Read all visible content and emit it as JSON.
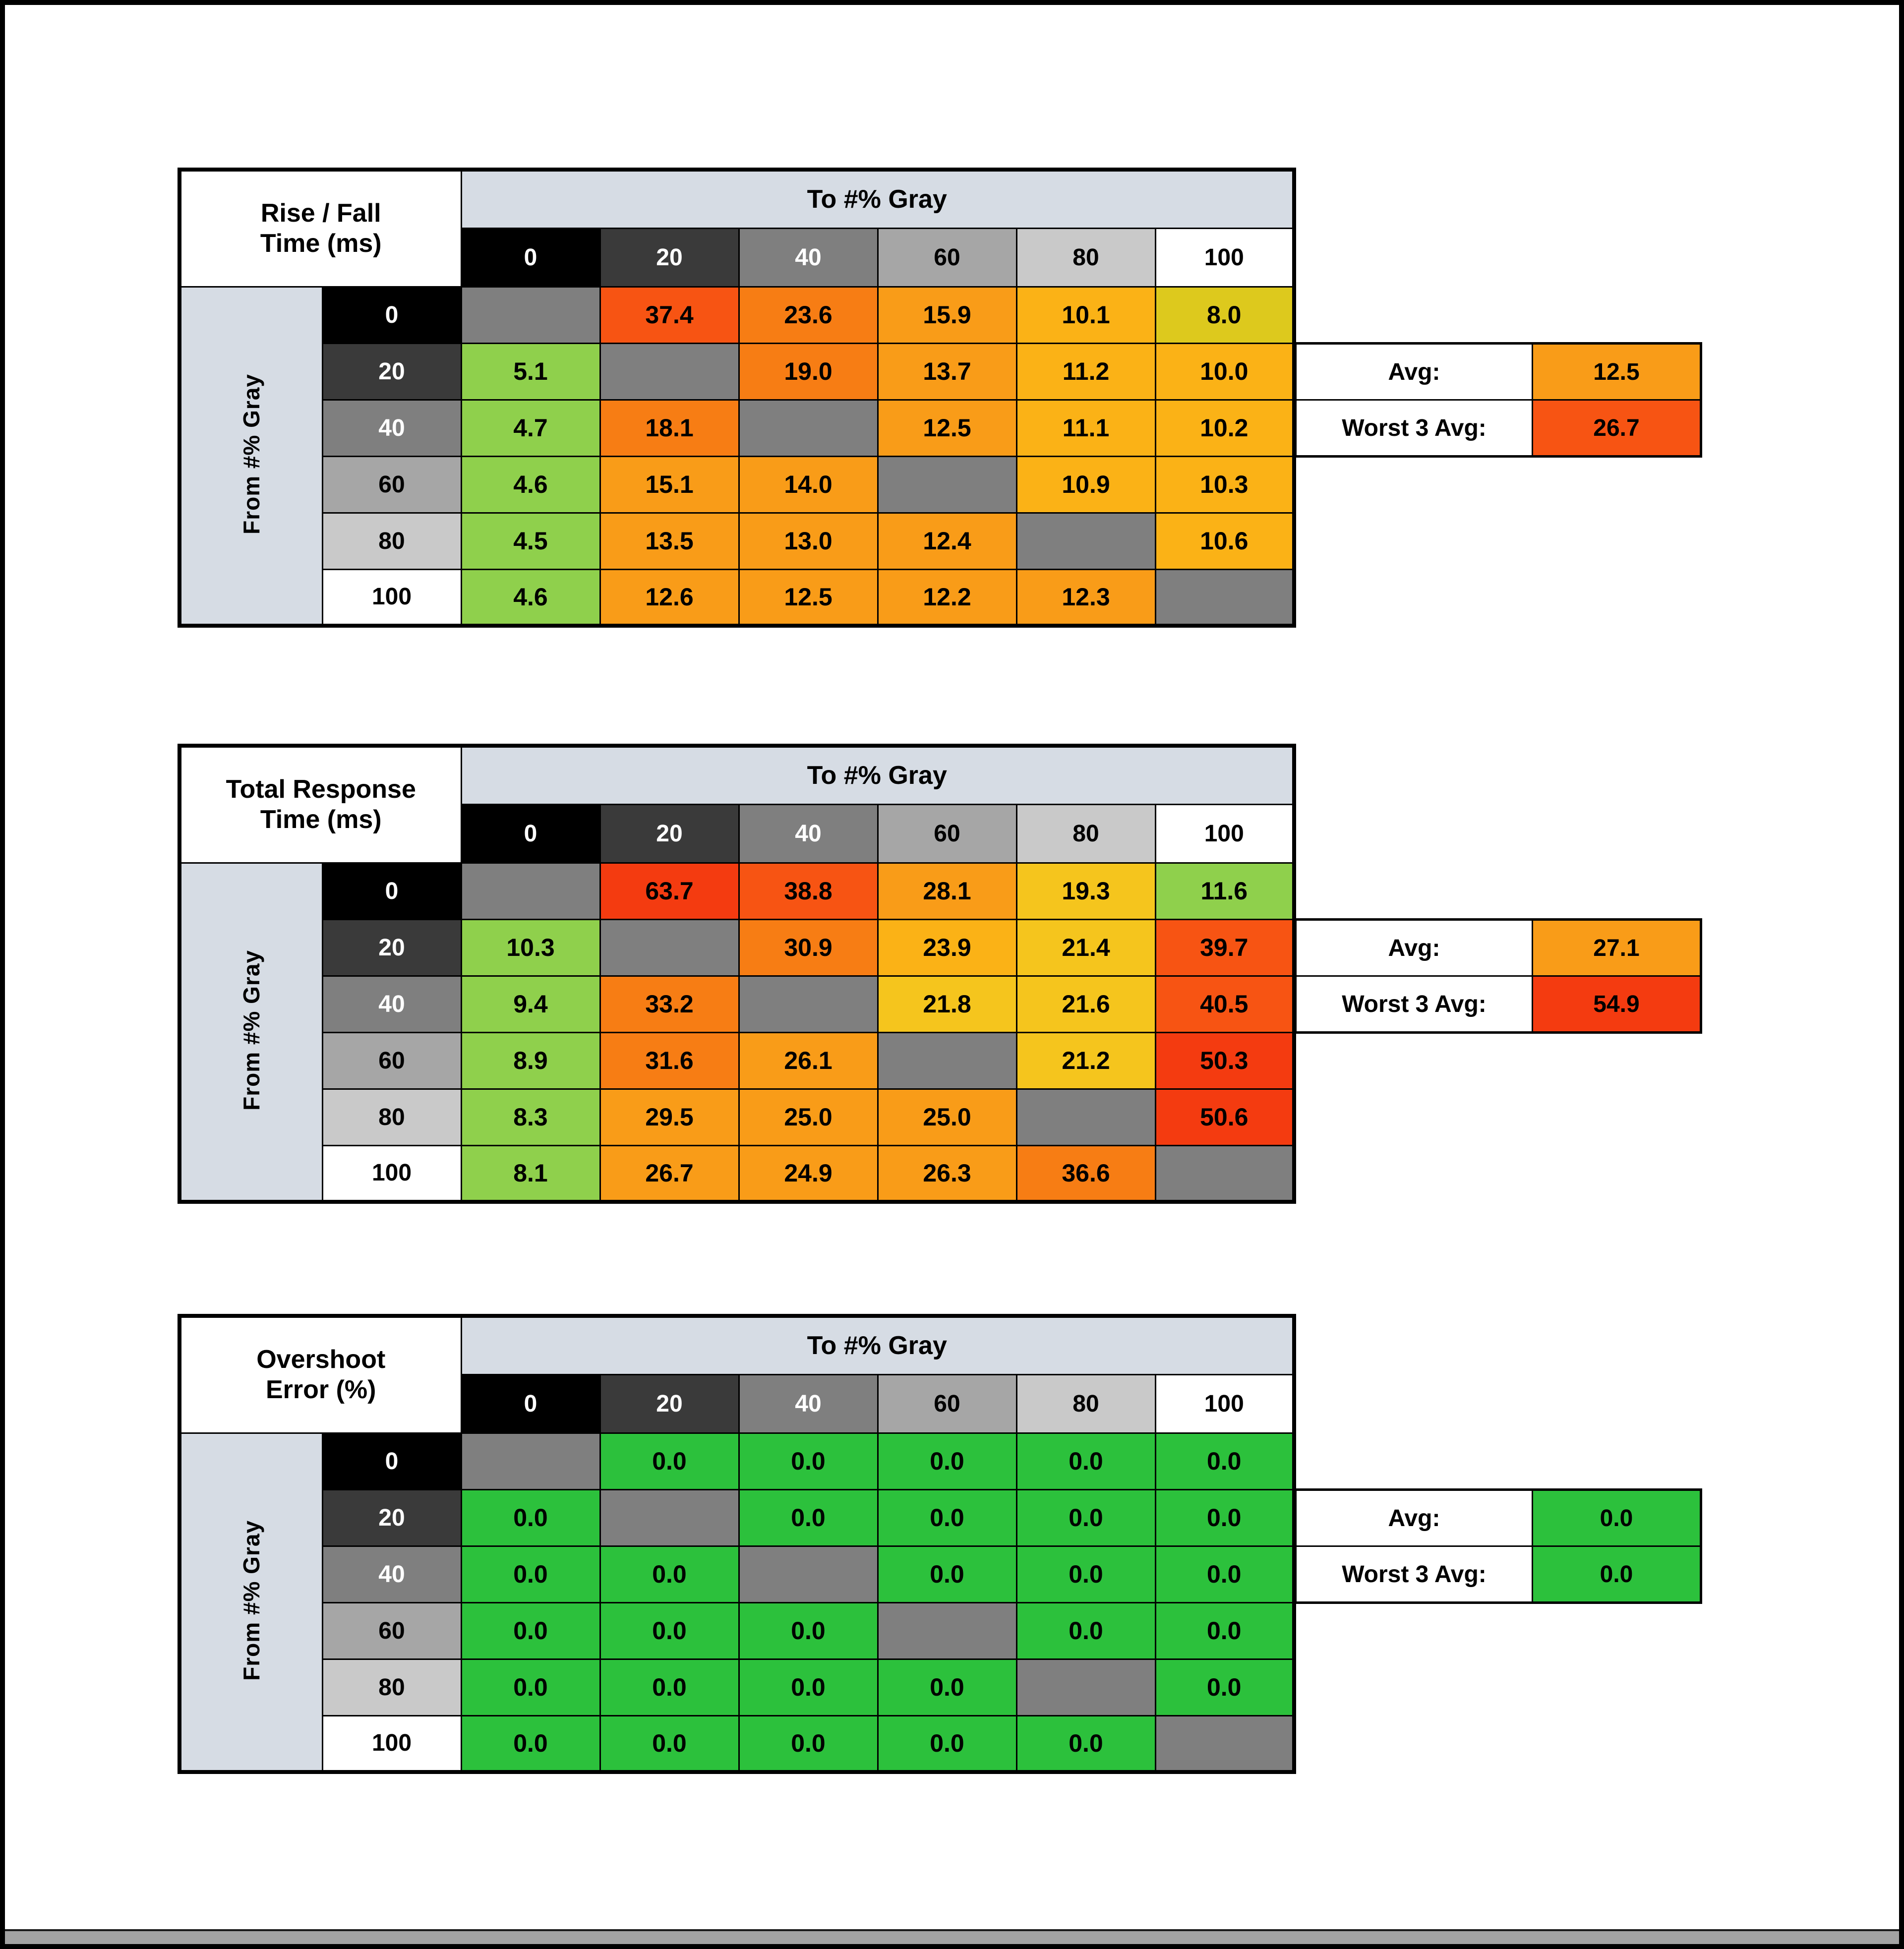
{
  "palette": {
    "header_band": "#d6dce4",
    "diagonal": "#7f7f7f",
    "gray_levels": {
      "0": "#000000",
      "20": "#3a3a3a",
      "40": "#7f7f7f",
      "60": "#a6a6a6",
      "80": "#c9c9c9",
      "100": "#ffffff"
    },
    "gray_text": {
      "0": "#ffffff",
      "20": "#ffffff",
      "40": "#ffffff",
      "60": "#000000",
      "80": "#000000",
      "100": "#000000"
    },
    "value_colors": {
      "G": "#2cc13c",
      "g": "#8fd04c",
      "y": "#ddc91d",
      "Y": "#f5c51d",
      "a": "#fbb216",
      "o": "#f99c18",
      "d": "#f77d14",
      "r": "#f75413",
      "R": "#f43b10"
    }
  },
  "chart_data": [
    {
      "type": "heatmap",
      "id": "rise-fall-time",
      "title_line1": "Rise / Fall",
      "title_line2": "Time (ms)",
      "col_axis_label": "To #% Gray",
      "row_axis_label": "From #% Gray",
      "gray_levels": [
        "0",
        "20",
        "40",
        "60",
        "80",
        "100"
      ],
      "values": [
        [
          null,
          "37.4",
          "23.6",
          "15.9",
          "10.1",
          "8.0"
        ],
        [
          "5.1",
          null,
          "19.0",
          "13.7",
          "11.2",
          "10.0"
        ],
        [
          "4.7",
          "18.1",
          null,
          "12.5",
          "11.1",
          "10.2"
        ],
        [
          "4.6",
          "15.1",
          "14.0",
          null,
          "10.9",
          "10.3"
        ],
        [
          "4.5",
          "13.5",
          "13.0",
          "12.4",
          null,
          "10.6"
        ],
        [
          "4.6",
          "12.6",
          "12.5",
          "12.2",
          "12.3",
          null
        ]
      ],
      "colors": [
        [
          null,
          "r",
          "d",
          "o",
          "a",
          "y"
        ],
        [
          "g",
          null,
          "d",
          "o",
          "a",
          "a"
        ],
        [
          "g",
          "d",
          null,
          "o",
          "a",
          "a"
        ],
        [
          "g",
          "o",
          "o",
          null,
          "a",
          "a"
        ],
        [
          "g",
          "o",
          "o",
          "o",
          null,
          "a"
        ],
        [
          "g",
          "o",
          "o",
          "o",
          "o",
          null
        ]
      ],
      "avg_label": "Avg:",
      "avg_value": "12.5",
      "avg_color": "o",
      "worst_label": "Worst 3 Avg:",
      "worst_value": "26.7",
      "worst_color": "r"
    },
    {
      "type": "heatmap",
      "id": "total-response-time",
      "title_line1": "Total Response",
      "title_line2": "Time (ms)",
      "col_axis_label": "To #% Gray",
      "row_axis_label": "From #% Gray",
      "gray_levels": [
        "0",
        "20",
        "40",
        "60",
        "80",
        "100"
      ],
      "values": [
        [
          null,
          "63.7",
          "38.8",
          "28.1",
          "19.3",
          "11.6"
        ],
        [
          "10.3",
          null,
          "30.9",
          "23.9",
          "21.4",
          "39.7"
        ],
        [
          "9.4",
          "33.2",
          null,
          "21.8",
          "21.6",
          "40.5"
        ],
        [
          "8.9",
          "31.6",
          "26.1",
          null,
          "21.2",
          "50.3"
        ],
        [
          "8.3",
          "29.5",
          "25.0",
          "25.0",
          null,
          "50.6"
        ],
        [
          "8.1",
          "26.7",
          "24.9",
          "26.3",
          "36.6",
          null
        ]
      ],
      "colors": [
        [
          null,
          "R",
          "r",
          "o",
          "Y",
          "g"
        ],
        [
          "g",
          null,
          "d",
          "a",
          "Y",
          "r"
        ],
        [
          "g",
          "d",
          null,
          "Y",
          "Y",
          "r"
        ],
        [
          "g",
          "d",
          "o",
          null,
          "Y",
          "R"
        ],
        [
          "g",
          "o",
          "o",
          "o",
          null,
          "R"
        ],
        [
          "g",
          "o",
          "o",
          "o",
          "d",
          null
        ]
      ],
      "avg_label": "Avg:",
      "avg_value": "27.1",
      "avg_color": "o",
      "worst_label": "Worst 3 Avg:",
      "worst_value": "54.9",
      "worst_color": "R"
    },
    {
      "type": "heatmap",
      "id": "overshoot-error",
      "title_line1": "Overshoot",
      "title_line2": "Error (%)",
      "col_axis_label": "To #% Gray",
      "row_axis_label": "From #% Gray",
      "gray_levels": [
        "0",
        "20",
        "40",
        "60",
        "80",
        "100"
      ],
      "values": [
        [
          null,
          "0.0",
          "0.0",
          "0.0",
          "0.0",
          "0.0"
        ],
        [
          "0.0",
          null,
          "0.0",
          "0.0",
          "0.0",
          "0.0"
        ],
        [
          "0.0",
          "0.0",
          null,
          "0.0",
          "0.0",
          "0.0"
        ],
        [
          "0.0",
          "0.0",
          "0.0",
          null,
          "0.0",
          "0.0"
        ],
        [
          "0.0",
          "0.0",
          "0.0",
          "0.0",
          null,
          "0.0"
        ],
        [
          "0.0",
          "0.0",
          "0.0",
          "0.0",
          "0.0",
          null
        ]
      ],
      "colors": [
        [
          null,
          "G",
          "G",
          "G",
          "G",
          "G"
        ],
        [
          "G",
          null,
          "G",
          "G",
          "G",
          "G"
        ],
        [
          "G",
          "G",
          null,
          "G",
          "G",
          "G"
        ],
        [
          "G",
          "G",
          "G",
          null,
          "G",
          "G"
        ],
        [
          "G",
          "G",
          "G",
          "G",
          null,
          "G"
        ],
        [
          "G",
          "G",
          "G",
          "G",
          "G",
          null
        ]
      ],
      "avg_label": "Avg:",
      "avg_value": "0.0",
      "avg_color": "G",
      "worst_label": "Worst 3 Avg:",
      "worst_value": "0.0",
      "worst_color": "G"
    }
  ]
}
